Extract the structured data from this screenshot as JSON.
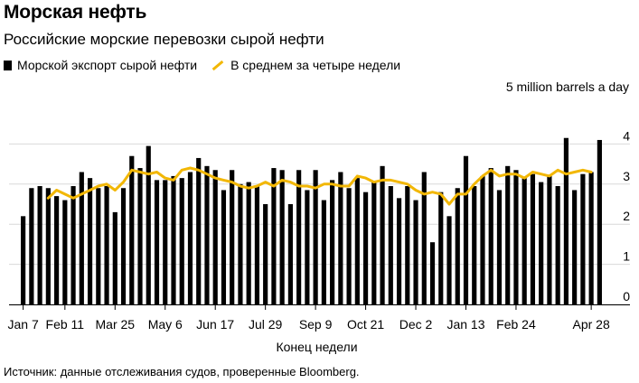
{
  "title": "Морская нефть",
  "subtitle": "Российские морские перевозки сырой нефти",
  "legend": {
    "bars_label": "Морской экспорт сырой нефти",
    "line_label": "В среднем за четыре недели"
  },
  "unit_label": "5 million barrels a day",
  "xlabel": "Конец недели",
  "source": "Источник: данные отслеживания судов, проверенные Bloomberg.",
  "colors": {
    "bars": "#000000",
    "line": "#f2b705",
    "grid": "#d9d9d9"
  },
  "chart_data": {
    "type": "bar",
    "title": "Морская нефть",
    "ylabel": "million barrels a day",
    "ylim": [
      0,
      5
    ],
    "yticks": [
      0,
      1,
      2,
      3,
      4
    ],
    "grid": true,
    "xtick_labels": [
      {
        "label": "Jan 7",
        "index": 0
      },
      {
        "label": "Feb 11",
        "index": 5
      },
      {
        "label": "Mar 25",
        "index": 11
      },
      {
        "label": "May 6",
        "index": 17
      },
      {
        "label": "Jun 17",
        "index": 23
      },
      {
        "label": "Jul 29",
        "index": 29
      },
      {
        "label": "Sep 9",
        "index": 35
      },
      {
        "label": "Oct 21",
        "index": 41
      },
      {
        "label": "Dec 2",
        "index": 47
      },
      {
        "label": "Jan 13",
        "index": 53
      },
      {
        "label": "Feb 24",
        "index": 59
      },
      {
        "label": "Apr 28",
        "index": 68
      }
    ],
    "series": [
      {
        "name": "Морской экспорт сырой нефти",
        "kind": "bar",
        "values": [
          2.2,
          2.9,
          2.95,
          2.9,
          2.7,
          2.6,
          2.95,
          3.3,
          3.15,
          2.9,
          2.95,
          2.3,
          2.9,
          3.7,
          3.4,
          3.95,
          3.1,
          3.1,
          3.2,
          3.15,
          3.3,
          3.65,
          3.45,
          3.35,
          2.85,
          3.35,
          3.0,
          3.05,
          2.95,
          2.5,
          3.4,
          3.35,
          2.5,
          3.35,
          2.85,
          3.35,
          2.6,
          3.1,
          3.3,
          2.9,
          3.15,
          2.8,
          3.05,
          3.45,
          2.95,
          2.65,
          2.95,
          2.6,
          3.3,
          1.55,
          2.8,
          2.2,
          2.9,
          3.7,
          2.95,
          3.2,
          3.4,
          2.85,
          3.45,
          3.35,
          3.15,
          3.25,
          3.05,
          3.2,
          2.95,
          4.15,
          2.85,
          3.25,
          3.3,
          4.1
        ]
      },
      {
        "name": "В среднем за четыре недели",
        "kind": "line",
        "start_index": 3,
        "values": [
          2.65,
          2.85,
          2.75,
          2.65,
          2.75,
          2.85,
          2.95,
          3.0,
          2.85,
          3.05,
          3.35,
          3.3,
          3.25,
          3.3,
          3.15,
          3.1,
          3.35,
          3.4,
          3.35,
          3.25,
          3.15,
          3.1,
          3.05,
          2.95,
          2.9,
          2.95,
          3.05,
          2.95,
          3.1,
          3.05,
          2.95,
          2.95,
          2.9,
          3.0,
          3.0,
          2.95,
          2.95,
          3.2,
          3.15,
          3.05,
          3.1,
          3.1,
          3.05,
          3.0,
          2.85,
          2.75,
          2.8,
          2.75,
          2.5,
          2.75,
          2.75,
          3.0,
          3.2,
          3.35,
          3.2,
          3.25,
          3.25,
          3.15,
          3.3,
          3.25,
          3.2,
          3.35,
          3.25,
          3.3,
          3.35,
          3.3
        ]
      }
    ]
  }
}
